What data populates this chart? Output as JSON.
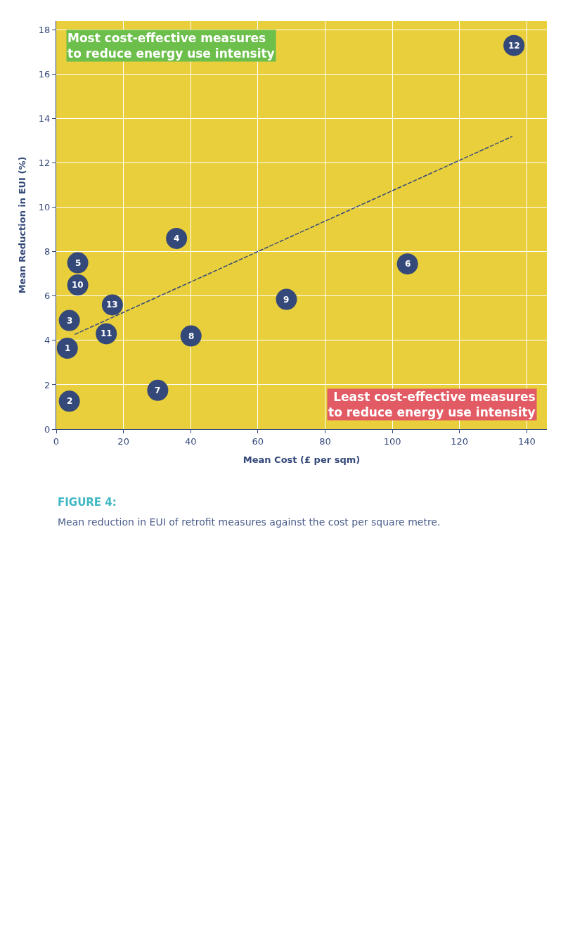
{
  "chart_data": {
    "type": "scatter",
    "title": "FIGURE 4:",
    "subtitle": "Mean reduction in EUI of retrofit measures against the cost per square metre.",
    "xlabel": "Mean Cost (£ per sqm)",
    "ylabel": "Mean Reduction in EUI (%)",
    "series": [
      {
        "color": "#34497a",
        "marker": "circle",
        "x": [
          3.3,
          3.9,
          3.9,
          35.8,
          6.4,
          104.5,
          30.2,
          40.1,
          68.5,
          6.4,
          14.9,
          136.2,
          16.7
        ],
        "values": [
          3.65,
          1.26,
          4.9,
          8.6,
          7.5,
          7.45,
          1.75,
          4.2,
          5.85,
          6.5,
          4.3,
          17.3,
          5.6
        ]
      },
      {
        "type": "line",
        "color": "#34497a",
        "line_style": "dashed",
        "marker": "none",
        "x": [
          5.5,
          135.7
        ],
        "values": [
          4.27,
          13.2
        ]
      }
    ],
    "annotations": [
      "Most cost-effective measures\nto reduce energy use intensity",
      "Least cost-effective measures\nto reduce energy use intensity",
      {
        "text": "1",
        "x": 3.3,
        "y": 3.65
      },
      {
        "text": "2",
        "x": 3.9,
        "y": 1.26
      },
      {
        "text": "3",
        "x": 3.9,
        "y": 4.9
      },
      {
        "text": "4",
        "x": 35.8,
        "y": 8.6
      },
      {
        "text": "5",
        "x": 6.4,
        "y": 7.5
      },
      {
        "text": "6",
        "x": 104.5,
        "y": 7.45
      },
      {
        "text": "7",
        "x": 30.2,
        "y": 1.75
      },
      {
        "text": "8",
        "x": 40.1,
        "y": 4.2
      },
      {
        "text": "9",
        "x": 68.5,
        "y": 5.85
      },
      {
        "text": "10",
        "x": 6.4,
        "y": 6.5
      },
      {
        "text": "11",
        "x": 14.9,
        "y": 4.3
      },
      {
        "text": "12",
        "x": 136.2,
        "y": 17.3
      },
      {
        "text": "13",
        "x": 16.7,
        "y": 5.6
      }
    ],
    "xlim": [
      0,
      146
    ],
    "xticks": [
      0,
      20,
      40,
      60,
      80,
      100,
      120,
      140
    ],
    "ylim": [
      0,
      18.4
    ],
    "yticks": [
      0,
      2,
      4,
      6,
      8,
      10,
      12,
      14,
      16,
      18
    ],
    "grid": true
  }
}
